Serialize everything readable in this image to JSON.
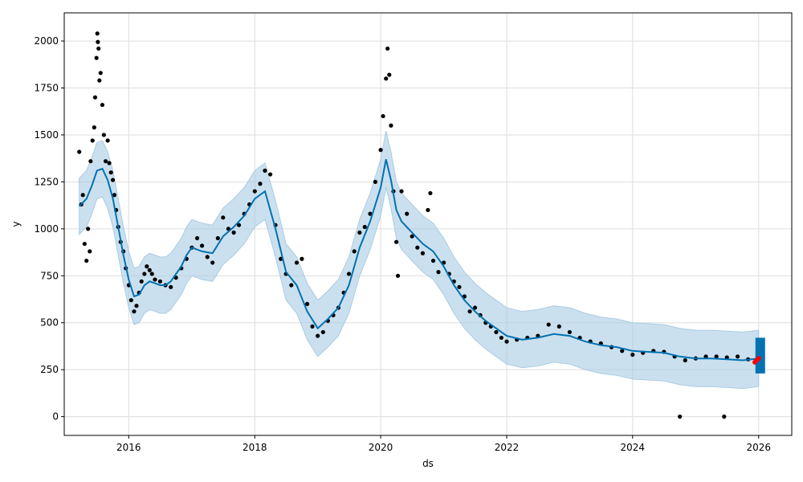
{
  "chart_data": {
    "type": "scatter",
    "xlabel": "ds",
    "ylabel": "y",
    "x_range": [
      "2014-12-23",
      "2026-07-12"
    ],
    "ylim": [
      -100,
      2150
    ],
    "x_ticks": [
      "2016",
      "2018",
      "2020",
      "2022",
      "2024",
      "2026"
    ],
    "y_ticks": [
      0,
      250,
      500,
      750,
      1000,
      1250,
      1500,
      1750,
      2000
    ],
    "grid": true,
    "colors": {
      "observed": "#000000",
      "forecast_line": "#0072B2",
      "uncertainty": "#A9CCE3",
      "highlight": "#FF0000"
    },
    "series": [
      {
        "kind": "scatter",
        "color": "#000000",
        "points": [
          [
            "2015-03-20",
            1410
          ],
          [
            "2015-04-01",
            1130
          ],
          [
            "2015-04-10",
            1180
          ],
          [
            "2015-04-20",
            920
          ],
          [
            "2015-05-01",
            830
          ],
          [
            "2015-05-10",
            1000
          ],
          [
            "2015-05-20",
            880
          ],
          [
            "2015-05-25",
            1360
          ],
          [
            "2015-06-05",
            1470
          ],
          [
            "2015-06-15",
            1540
          ],
          [
            "2015-06-20",
            1700
          ],
          [
            "2015-06-28",
            1910
          ],
          [
            "2015-07-03",
            2040
          ],
          [
            "2015-07-06",
            1995
          ],
          [
            "2015-07-10",
            1960
          ],
          [
            "2015-07-15",
            1790
          ],
          [
            "2015-07-22",
            1830
          ],
          [
            "2015-08-01",
            1660
          ],
          [
            "2015-08-10",
            1500
          ],
          [
            "2015-08-20",
            1360
          ],
          [
            "2015-09-01",
            1470
          ],
          [
            "2015-09-10",
            1350
          ],
          [
            "2015-09-20",
            1300
          ],
          [
            "2015-10-01",
            1260
          ],
          [
            "2015-10-10",
            1180
          ],
          [
            "2015-10-20",
            1100
          ],
          [
            "2015-11-01",
            1010
          ],
          [
            "2015-11-15",
            930
          ],
          [
            "2015-12-01",
            880
          ],
          [
            "2015-12-15",
            790
          ],
          [
            "2016-01-01",
            700
          ],
          [
            "2016-01-15",
            620
          ],
          [
            "2016-02-01",
            560
          ],
          [
            "2016-02-15",
            590
          ],
          [
            "2016-03-01",
            660
          ],
          [
            "2016-03-15",
            720
          ],
          [
            "2016-04-01",
            760
          ],
          [
            "2016-04-15",
            800
          ],
          [
            "2016-05-01",
            780
          ],
          [
            "2016-05-15",
            760
          ],
          [
            "2016-06-01",
            730
          ],
          [
            "2016-07-01",
            720
          ],
          [
            "2016-08-01",
            700
          ],
          [
            "2016-09-01",
            690
          ],
          [
            "2016-10-01",
            740
          ],
          [
            "2016-11-01",
            790
          ],
          [
            "2016-12-01",
            840
          ],
          [
            "2017-01-01",
            900
          ],
          [
            "2017-02-01",
            950
          ],
          [
            "2017-03-01",
            910
          ],
          [
            "2017-04-01",
            850
          ],
          [
            "2017-05-01",
            820
          ],
          [
            "2017-06-01",
            950
          ],
          [
            "2017-07-01",
            1060
          ],
          [
            "2017-08-01",
            1000
          ],
          [
            "2017-09-01",
            980
          ],
          [
            "2017-10-01",
            1020
          ],
          [
            "2017-11-01",
            1080
          ],
          [
            "2017-12-01",
            1130
          ],
          [
            "2018-01-01",
            1200
          ],
          [
            "2018-02-01",
            1240
          ],
          [
            "2018-03-01",
            1310
          ],
          [
            "2018-04-01",
            1290
          ],
          [
            "2018-05-01",
            1020
          ],
          [
            "2018-06-01",
            840
          ],
          [
            "2018-07-01",
            760
          ],
          [
            "2018-08-01",
            700
          ],
          [
            "2018-09-01",
            820
          ],
          [
            "2018-10-01",
            840
          ],
          [
            "2018-11-01",
            600
          ],
          [
            "2018-12-01",
            480
          ],
          [
            "2019-01-01",
            430
          ],
          [
            "2019-02-01",
            450
          ],
          [
            "2019-03-01",
            510
          ],
          [
            "2019-04-01",
            540
          ],
          [
            "2019-05-01",
            580
          ],
          [
            "2019-06-01",
            660
          ],
          [
            "2019-07-01",
            760
          ],
          [
            "2019-08-01",
            880
          ],
          [
            "2019-09-01",
            980
          ],
          [
            "2019-10-01",
            1010
          ],
          [
            "2019-11-01",
            1080
          ],
          [
            "2019-12-01",
            1250
          ],
          [
            "2020-01-01",
            1420
          ],
          [
            "2020-01-15",
            1600
          ],
          [
            "2020-02-01",
            1800
          ],
          [
            "2020-02-10",
            1960
          ],
          [
            "2020-02-20",
            1820
          ],
          [
            "2020-03-01",
            1550
          ],
          [
            "2020-03-15",
            1200
          ],
          [
            "2020-04-01",
            930
          ],
          [
            "2020-04-10",
            750
          ],
          [
            "2020-05-01",
            1200
          ],
          [
            "2020-06-01",
            1080
          ],
          [
            "2020-07-01",
            960
          ],
          [
            "2020-08-01",
            900
          ],
          [
            "2020-09-01",
            870
          ],
          [
            "2020-10-01",
            1100
          ],
          [
            "2020-10-15",
            1190
          ],
          [
            "2020-11-01",
            830
          ],
          [
            "2020-12-01",
            770
          ],
          [
            "2021-01-01",
            820
          ],
          [
            "2021-02-01",
            760
          ],
          [
            "2021-03-01",
            720
          ],
          [
            "2021-04-01",
            690
          ],
          [
            "2021-05-01",
            640
          ],
          [
            "2021-06-01",
            560
          ],
          [
            "2021-07-01",
            580
          ],
          [
            "2021-08-01",
            540
          ],
          [
            "2021-09-01",
            500
          ],
          [
            "2021-10-01",
            480
          ],
          [
            "2021-11-01",
            450
          ],
          [
            "2021-12-01",
            420
          ],
          [
            "2022-01-01",
            400
          ],
          [
            "2022-03-01",
            410
          ],
          [
            "2022-05-01",
            420
          ],
          [
            "2022-07-01",
            430
          ],
          [
            "2022-09-01",
            490
          ],
          [
            "2022-11-01",
            480
          ],
          [
            "2023-01-01",
            450
          ],
          [
            "2023-03-01",
            420
          ],
          [
            "2023-05-01",
            400
          ],
          [
            "2023-07-01",
            390
          ],
          [
            "2023-09-01",
            370
          ],
          [
            "2023-11-01",
            350
          ],
          [
            "2024-01-01",
            330
          ],
          [
            "2024-03-01",
            340
          ],
          [
            "2024-05-01",
            350
          ],
          [
            "2024-07-01",
            345
          ],
          [
            "2024-09-01",
            320
          ],
          [
            "2024-10-01",
            0
          ],
          [
            "2024-11-01",
            300
          ],
          [
            "2025-01-01",
            310
          ],
          [
            "2025-03-01",
            320
          ],
          [
            "2025-05-01",
            320
          ],
          [
            "2025-06-15",
            0
          ],
          [
            "2025-07-01",
            315
          ],
          [
            "2025-09-01",
            320
          ],
          [
            "2025-11-01",
            305
          ]
        ]
      },
      {
        "kind": "line",
        "color": "#0072B2",
        "points": [
          [
            "2015-03-20",
            1120
          ],
          [
            "2015-05-01",
            1160
          ],
          [
            "2015-06-01",
            1230
          ],
          [
            "2015-07-01",
            1310
          ],
          [
            "2015-08-01",
            1320
          ],
          [
            "2015-09-01",
            1260
          ],
          [
            "2015-10-01",
            1160
          ],
          [
            "2015-11-01",
            1010
          ],
          [
            "2015-12-01",
            860
          ],
          [
            "2016-01-01",
            730
          ],
          [
            "2016-02-01",
            640
          ],
          [
            "2016-03-01",
            650
          ],
          [
            "2016-04-01",
            700
          ],
          [
            "2016-05-01",
            720
          ],
          [
            "2016-06-01",
            710
          ],
          [
            "2016-07-01",
            700
          ],
          [
            "2016-08-01",
            700
          ],
          [
            "2016-09-01",
            720
          ],
          [
            "2016-10-01",
            760
          ],
          [
            "2016-11-01",
            800
          ],
          [
            "2016-12-01",
            860
          ],
          [
            "2017-01-01",
            900
          ],
          [
            "2017-03-01",
            880
          ],
          [
            "2017-05-01",
            870
          ],
          [
            "2017-07-01",
            960
          ],
          [
            "2017-09-01",
            1010
          ],
          [
            "2017-11-01",
            1070
          ],
          [
            "2018-01-01",
            1160
          ],
          [
            "2018-03-01",
            1200
          ],
          [
            "2018-05-01",
            1000
          ],
          [
            "2018-07-01",
            770
          ],
          [
            "2018-09-01",
            700
          ],
          [
            "2018-11-01",
            560
          ],
          [
            "2019-01-01",
            470
          ],
          [
            "2019-03-01",
            520
          ],
          [
            "2019-05-01",
            580
          ],
          [
            "2019-07-01",
            700
          ],
          [
            "2019-09-01",
            900
          ],
          [
            "2019-11-01",
            1040
          ],
          [
            "2020-01-01",
            1220
          ],
          [
            "2020-02-01",
            1370
          ],
          [
            "2020-03-01",
            1260
          ],
          [
            "2020-04-01",
            1100
          ],
          [
            "2020-05-01",
            1040
          ],
          [
            "2020-07-01",
            980
          ],
          [
            "2020-09-01",
            920
          ],
          [
            "2020-11-01",
            880
          ],
          [
            "2021-01-01",
            800
          ],
          [
            "2021-03-01",
            700
          ],
          [
            "2021-05-01",
            620
          ],
          [
            "2021-07-01",
            560
          ],
          [
            "2021-09-01",
            510
          ],
          [
            "2021-11-01",
            470
          ],
          [
            "2022-01-01",
            430
          ],
          [
            "2022-04-01",
            410
          ],
          [
            "2022-07-01",
            420
          ],
          [
            "2022-10-01",
            440
          ],
          [
            "2023-01-01",
            430
          ],
          [
            "2023-04-01",
            400
          ],
          [
            "2023-07-01",
            380
          ],
          [
            "2023-10-01",
            370
          ],
          [
            "2024-01-01",
            350
          ],
          [
            "2024-04-01",
            345
          ],
          [
            "2024-07-01",
            340
          ],
          [
            "2024-10-01",
            320
          ],
          [
            "2025-01-01",
            310
          ],
          [
            "2025-04-01",
            310
          ],
          [
            "2025-07-01",
            305
          ],
          [
            "2025-10-01",
            300
          ],
          [
            "2026-01-01",
            310
          ]
        ]
      },
      {
        "kind": "highlight",
        "color": "#FF0000",
        "points": [
          [
            "2025-12-10",
            290
          ],
          [
            "2025-12-20",
            300
          ],
          [
            "2026-01-01",
            310
          ]
        ]
      }
    ]
  }
}
